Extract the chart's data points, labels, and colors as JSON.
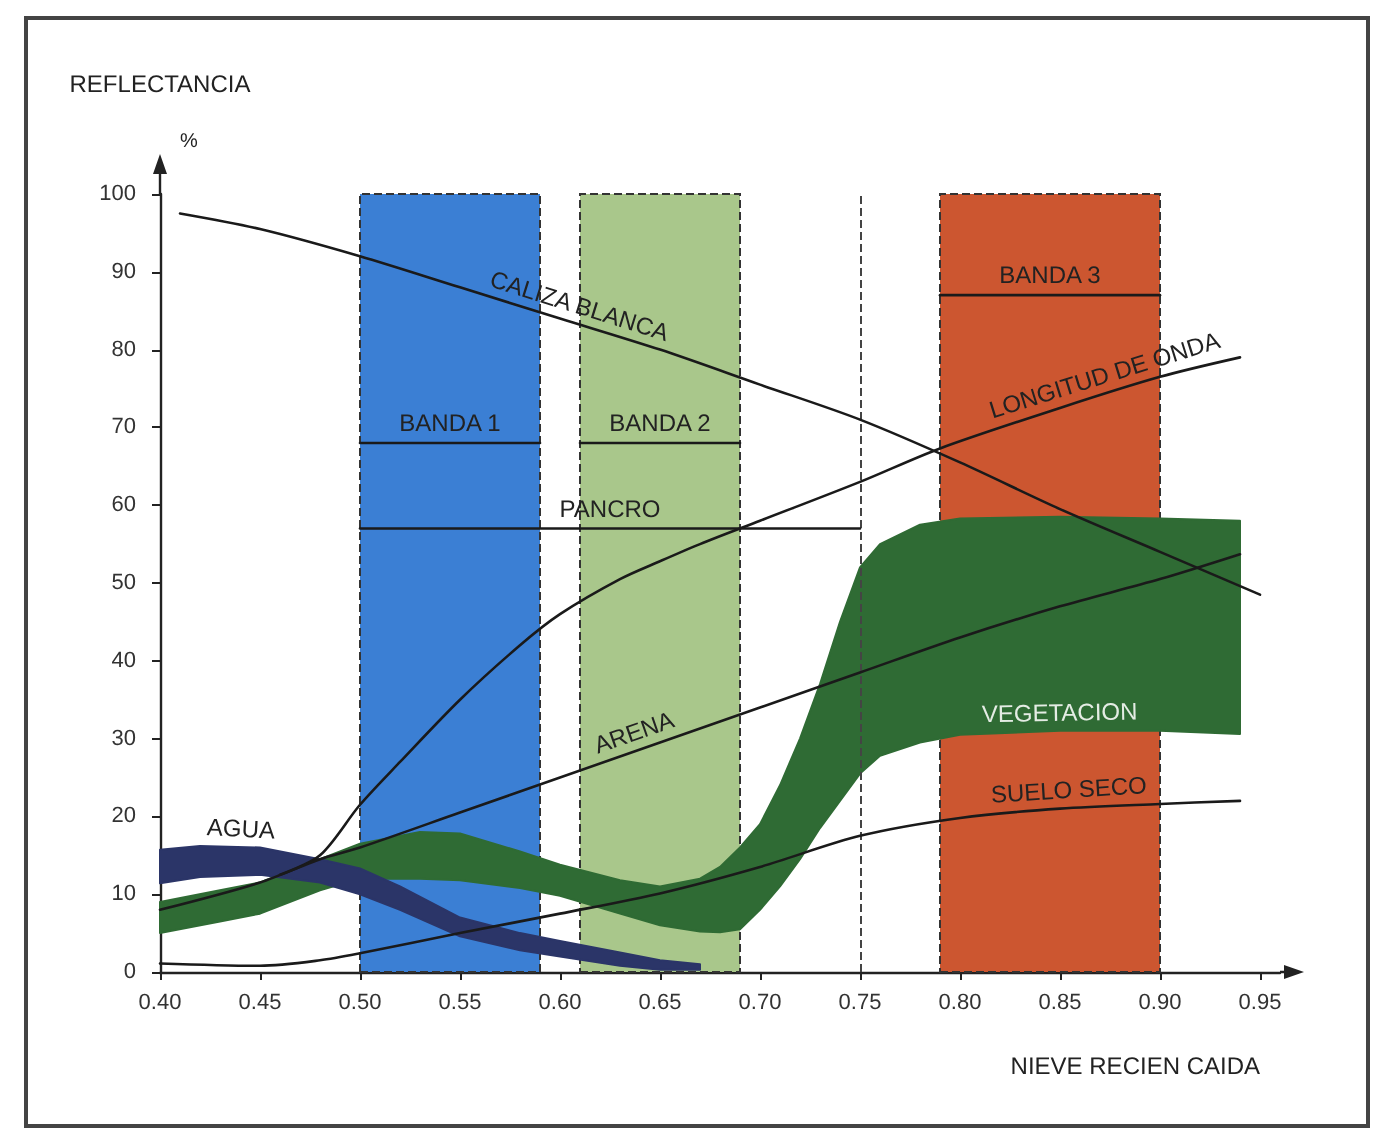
{
  "chart_data": {
    "type": "line",
    "xlabel": "NIEVE RECIEN CAIDA",
    "ylabel": "REFLECTANCIA\n%",
    "xlim": [
      0.4,
      0.96
    ],
    "xticks": [
      {
        "value": 0.4,
        "label": "0.40"
      },
      0.45,
      {
        "value": 0.5,
        "label": "0.50"
      },
      0.55,
      {
        "value": 0.6,
        "label": "0.60"
      },
      0.65,
      {
        "value": 0.7,
        "label": "0.70"
      },
      0.75,
      {
        "value": 0.8,
        "label": "0.80"
      },
      0.85,
      {
        "value": 0.9,
        "label": "0.90"
      },
      0.95
    ],
    "ylim": [
      0,
      100
    ],
    "yticks": [
      0,
      10,
      20,
      30,
      40,
      50,
      60,
      70,
      80,
      90,
      100
    ],
    "marker": "none",
    "bands": [
      {
        "axis": "x",
        "from": 0.5,
        "to": 0.59,
        "color": "#3b7fd4"
      },
      {
        "axis": "x",
        "from": 0.61,
        "to": 0.69,
        "color": "#a9c78b"
      },
      {
        "axis": "x",
        "from": 0.79,
        "to": 0.9,
        "color": "#cc5630"
      }
    ],
    "ref_lines": [
      {
        "axis": "x",
        "value": 0.75,
        "line_style": "dashed",
        "color": "#444444"
      }
    ],
    "series": [
      {
        "color": "#2f6b34",
        "x": [
          0.4,
          0.43,
          0.45,
          0.48,
          0.5,
          0.53,
          0.55,
          0.58,
          0.6,
          0.63,
          0.65,
          0.67,
          0.68,
          0.69,
          0.7,
          0.71,
          0.72,
          0.73,
          0.74,
          0.75,
          0.76,
          0.78,
          0.8,
          0.85,
          0.9,
          0.94
        ],
        "values": [
          null,
          null,
          null,
          null,
          null,
          null,
          null,
          null,
          null,
          null,
          null,
          null,
          null,
          null,
          null,
          null,
          null,
          null,
          null,
          null,
          null,
          null,
          null,
          null,
          null,
          null
        ],
        "upper": [
          9,
          10.5,
          11.5,
          14.5,
          16.5,
          18,
          17.8,
          15.5,
          13.8,
          11.8,
          11,
          12,
          13.5,
          16,
          19,
          24,
          30,
          37,
          45,
          52,
          55,
          57.5,
          58.3,
          58.5,
          58.3,
          58
        ],
        "lower": [
          5,
          6.5,
          7.5,
          10.5,
          12,
          12,
          11.8,
          10.8,
          9.8,
          7.5,
          6,
          5.2,
          5.1,
          5.5,
          8,
          11,
          14.5,
          18.5,
          22,
          25.5,
          27.8,
          29.5,
          30.5,
          31,
          31,
          30.6
        ]
      },
      {
        "color": "#2b3568",
        "x": [
          0.4,
          0.42,
          0.45,
          0.48,
          0.5,
          0.52,
          0.55,
          0.58,
          0.6,
          0.63,
          0.65,
          0.67
        ],
        "values": [
          null,
          null,
          null,
          null,
          null,
          null,
          null,
          null,
          null,
          null,
          null,
          null
        ],
        "upper": [
          15.7,
          16.2,
          16,
          14.5,
          13.3,
          11,
          7,
          5,
          4,
          2.5,
          1.5,
          1
        ],
        "lower": [
          11.4,
          12.2,
          12.5,
          11.5,
          10,
          8,
          4.6,
          2.8,
          2,
          0.8,
          0.3,
          0.3
        ]
      },
      {
        "color": "#1a1a1a",
        "x": [
          0.41,
          0.45,
          0.5,
          0.55,
          0.6,
          0.65,
          0.7,
          0.75,
          0.8,
          0.85,
          0.9,
          0.95
        ],
        "values": [
          97.5,
          95.5,
          92,
          88,
          84,
          80,
          75.5,
          71,
          65.5,
          59.5,
          54,
          48.5
        ]
      },
      {
        "color": "#1a1a1a",
        "x": [
          0.46,
          0.48,
          0.5,
          0.52,
          0.55,
          0.58,
          0.6,
          0.63,
          0.65,
          0.67,
          0.7,
          0.75,
          0.79,
          0.85,
          0.9,
          0.94
        ],
        "values": [
          12.5,
          15,
          21.5,
          27,
          35,
          42,
          46,
          50.5,
          52.8,
          55,
          58,
          63,
          67.3,
          72.5,
          76.5,
          79
        ]
      },
      {
        "color": "#1a1a1a",
        "x": [
          0.4,
          0.45,
          0.48,
          0.5,
          0.55,
          0.6,
          0.65,
          0.7,
          0.75,
          0.8,
          0.85,
          0.9,
          0.94
        ],
        "values": [
          8,
          11.5,
          14.5,
          16,
          20.5,
          25,
          29.5,
          34,
          38.5,
          43,
          47,
          50.5,
          53.7
        ]
      },
      {
        "color": "#1a1a1a",
        "x": [
          0.4,
          0.45,
          0.48,
          0.5,
          0.55,
          0.6,
          0.65,
          0.7,
          0.75,
          0.8,
          0.85,
          0.9,
          0.94
        ],
        "values": [
          1.1,
          0.8,
          1.5,
          2.4,
          5,
          7.5,
          10.1,
          13.5,
          17.5,
          19.8,
          21,
          21.6,
          22
        ]
      },
      {
        "name": "BANDA 1",
        "color": "#1a1a1a",
        "x": [
          0.5,
          0.59
        ],
        "values": [
          68,
          68
        ]
      },
      {
        "name": "BANDA 2",
        "color": "#1a1a1a",
        "x": [
          0.61,
          0.69
        ],
        "values": [
          68,
          68
        ]
      },
      {
        "name": "BANDA 3",
        "color": "#1a1a1a",
        "x": [
          0.79,
          0.9
        ],
        "values": [
          87,
          87
        ]
      },
      {
        "name": "PANCRO",
        "color": "#1a1a1a",
        "x": [
          0.5,
          0.75
        ],
        "values": [
          57,
          57
        ]
      }
    ],
    "annotations": [
      {
        "text": "CALIZA BLANCA",
        "x": 0.607,
        "y": 83.4
      },
      {
        "text": "LONGITUD DE ONDA",
        "x": 0.875,
        "y": 74.5
      },
      {
        "text": "ARENA",
        "x": 0.64,
        "y": 28.6
      },
      {
        "text": "VEGETACION",
        "x": 0.85,
        "y": 31
      },
      {
        "text": "SUELO SECO",
        "x": 0.855,
        "y": 21.1
      },
      {
        "text": "AGUA",
        "x": 0.44,
        "y": 16.1
      }
    ]
  }
}
